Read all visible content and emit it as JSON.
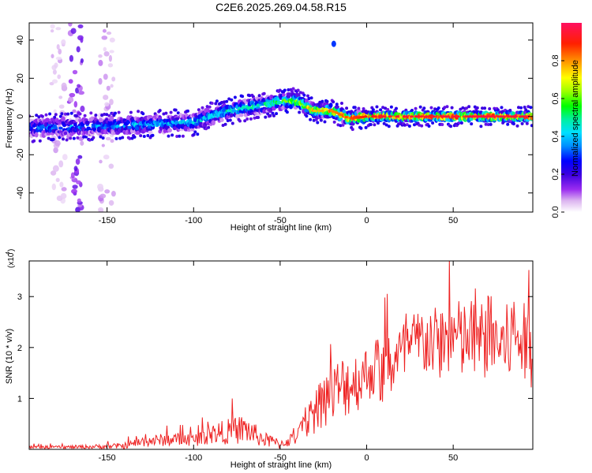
{
  "title": "C2E6.2025.269.04.58.R15",
  "colorbar": {
    "label": "Normalized spectral amplitude",
    "ticks": [
      "0.0",
      "0.2",
      "0.4",
      "0.6",
      "0.8"
    ],
    "tick_values": [
      0.0,
      0.2,
      0.4,
      0.6,
      0.8
    ],
    "range": [
      0,
      1
    ]
  },
  "chart_data": [
    {
      "type": "heatmap",
      "name": "spectrogram",
      "xlabel": "Height of straight line (km)",
      "ylabel": "Frequency (Hz)",
      "xlim": [
        -195,
        96
      ],
      "ylim": [
        -50,
        49
      ],
      "xticks": [
        -150,
        -100,
        -50,
        0,
        50
      ],
      "xtick_labels": [
        "-150",
        "-100",
        "-50",
        "0",
        "50"
      ],
      "yticks": [
        -40,
        -20,
        0,
        20,
        40
      ],
      "ytick_labels": [
        "-40",
        "-20",
        "0",
        "20",
        "40"
      ],
      "ridge": {
        "x": [
          -195,
          -150,
          -120,
          -100,
          -80,
          -60,
          -50,
          -40,
          -30,
          -20,
          -10,
          0,
          20,
          50,
          96
        ],
        "y": [
          -6,
          -5,
          -4,
          -3,
          3,
          6,
          8,
          8,
          3,
          3,
          -1,
          0,
          0,
          0,
          0
        ],
        "amplitude": [
          0.35,
          0.35,
          0.4,
          0.4,
          0.5,
          0.5,
          0.55,
          0.7,
          0.8,
          0.85,
          0.9,
          0.95,
          1.0,
          1.0,
          1.0
        ]
      },
      "artifacts": [
        {
          "x": -168,
          "y_range": [
            -50,
            49
          ],
          "amplitude": 0.12
        },
        {
          "x": -150,
          "y_range": [
            -50,
            45
          ],
          "amplitude": 0.06
        },
        {
          "x": -178,
          "y_range": [
            -50,
            49
          ],
          "amplitude": 0.05
        },
        {
          "x": -19,
          "y": 38,
          "amplitude": 0.2
        }
      ]
    },
    {
      "type": "line",
      "name": "snr",
      "xlabel": "Height of straight line (km)",
      "ylabel": "SNR (10 * v/v)",
      "scale_label": "(x10",
      "scale_exponent": "4",
      "color": "#ee2222",
      "xlim": [
        -195,
        96
      ],
      "ylim": [
        0,
        3.7
      ],
      "xticks": [
        -150,
        -100,
        -50,
        0,
        50
      ],
      "xtick_labels": [
        "-150",
        "-100",
        "-50",
        "0",
        "50"
      ],
      "yticks": [
        1,
        2,
        3
      ],
      "ytick_labels": [
        "1",
        "2",
        "3"
      ],
      "x": [
        -195,
        -180,
        -160,
        -140,
        -130,
        -120,
        -110,
        -100,
        -90,
        -80,
        -70,
        -60,
        -50,
        -40,
        -35,
        -30,
        -25,
        -20,
        -15,
        -10,
        -5,
        0,
        5,
        10,
        15,
        20,
        25,
        30,
        35,
        40,
        45,
        50,
        55,
        60,
        65,
        70,
        75,
        80,
        85,
        90,
        96
      ],
      "values": [
        0.04,
        0.04,
        0.05,
        0.07,
        0.15,
        0.18,
        0.2,
        0.18,
        0.3,
        0.35,
        0.4,
        0.2,
        0.1,
        0.25,
        0.5,
        0.75,
        1.0,
        1.1,
        1.2,
        1.3,
        1.35,
        1.5,
        1.6,
        1.45,
        1.7,
        1.85,
        1.95,
        2.1,
        2.15,
        2.05,
        2.15,
        2.25,
        2.1,
        2.2,
        2.05,
        2.25,
        2.15,
        2.0,
        2.3,
        2.1,
        2.0
      ],
      "noise_amplitude": [
        0.03,
        0.03,
        0.04,
        0.06,
        0.1,
        0.12,
        0.13,
        0.12,
        0.2,
        0.25,
        0.3,
        0.15,
        0.1,
        0.15,
        0.3,
        0.45,
        0.55,
        0.6,
        0.65,
        0.65,
        0.6,
        0.55,
        0.6,
        0.7,
        0.65,
        0.65,
        0.7,
        0.7,
        0.75,
        0.75,
        0.75,
        0.8,
        0.8,
        0.8,
        0.8,
        0.85,
        0.8,
        0.8,
        0.85,
        0.8,
        0.8
      ]
    }
  ]
}
